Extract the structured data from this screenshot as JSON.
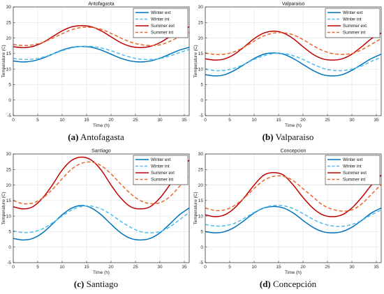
{
  "figure": {
    "panels": [
      {
        "letter": "(a)",
        "caption": "Antofagasta"
      },
      {
        "letter": "(b)",
        "caption": "Valparaiso"
      },
      {
        "letter": "(c)",
        "caption": "Santiago"
      },
      {
        "letter": "(d)",
        "caption": "Concepción"
      }
    ]
  },
  "chart_data": [
    {
      "type": "line",
      "title": "Antofagasta",
      "xlabel": "Time (h)",
      "ylabel": "Temperature (C)",
      "xlim": [
        0,
        36
      ],
      "ylim": [
        -5,
        30
      ],
      "xticks": [
        0,
        5,
        10,
        15,
        20,
        25,
        30,
        35
      ],
      "yticks": [
        -5,
        0,
        5,
        10,
        15,
        20,
        25,
        30
      ],
      "grid": true,
      "legend_position": "top-right",
      "series": [
        {
          "name": "Winter ext",
          "color": "#0072BD",
          "dash": "solid",
          "x": [
            0,
            2,
            4,
            6,
            8,
            10,
            12,
            14,
            16,
            18,
            20,
            22,
            24,
            26,
            28,
            30,
            32,
            34,
            36
          ],
          "y": [
            12.6,
            12.3,
            12.6,
            13.5,
            14.8,
            16.1,
            17.0,
            17.3,
            17.0,
            16.1,
            14.8,
            13.5,
            12.6,
            12.3,
            12.6,
            13.5,
            14.8,
            16.1,
            17.0
          ]
        },
        {
          "name": "Winter int",
          "color": "#4DBEEE",
          "dash": "dashed",
          "x": [
            0,
            2,
            4,
            6,
            8,
            10,
            12,
            14,
            16,
            18,
            20,
            22,
            24,
            26,
            28,
            30,
            32,
            34,
            36
          ],
          "y": [
            13.4,
            13.1,
            13.2,
            13.8,
            14.8,
            15.9,
            16.8,
            17.3,
            17.3,
            16.8,
            15.9,
            14.8,
            13.8,
            13.2,
            13.1,
            13.4,
            14.2,
            15.3,
            16.3
          ]
        },
        {
          "name": "Summer ext",
          "color": "#C00000",
          "dash": "solid",
          "x": [
            0,
            2,
            4,
            6,
            8,
            10,
            12,
            14,
            16,
            18,
            20,
            22,
            24,
            26,
            28,
            30,
            32,
            34,
            36
          ],
          "y": [
            17.2,
            16.9,
            17.3,
            18.5,
            20.4,
            22.3,
            23.6,
            24.0,
            23.6,
            22.3,
            20.4,
            18.5,
            17.3,
            16.9,
            17.3,
            18.5,
            20.4,
            22.3,
            23.6
          ]
        },
        {
          "name": "Summer int",
          "color": "#E8682A",
          "dash": "dashed",
          "x": [
            0,
            2,
            4,
            6,
            8,
            10,
            12,
            14,
            16,
            18,
            20,
            22,
            24,
            26,
            28,
            30,
            32,
            34,
            36
          ],
          "y": [
            17.9,
            17.6,
            17.8,
            18.6,
            19.9,
            21.4,
            22.7,
            23.4,
            23.4,
            22.8,
            21.5,
            20.0,
            18.7,
            17.9,
            17.6,
            17.8,
            18.9,
            20.4,
            21.8
          ]
        }
      ]
    },
    {
      "type": "line",
      "title": "Valparaiso",
      "xlabel": "Time (h)",
      "ylabel": "Temperature (C)",
      "xlim": [
        0,
        36
      ],
      "ylim": [
        -5,
        30
      ],
      "xticks": [
        0,
        5,
        10,
        15,
        20,
        25,
        30,
        35
      ],
      "yticks": [
        -5,
        0,
        5,
        10,
        15,
        20,
        25,
        30
      ],
      "grid": true,
      "legend_position": "top-right",
      "series": [
        {
          "name": "Winter ext",
          "color": "#0072BD",
          "dash": "solid",
          "x": [
            0,
            2,
            4,
            6,
            8,
            10,
            12,
            14,
            16,
            18,
            20,
            22,
            24,
            26,
            28,
            30,
            32,
            34,
            36
          ],
          "y": [
            8.2,
            7.8,
            8.2,
            9.6,
            11.5,
            13.4,
            14.8,
            15.2,
            14.8,
            13.4,
            11.5,
            9.6,
            8.2,
            7.8,
            8.2,
            9.6,
            11.5,
            13.4,
            14.8
          ]
        },
        {
          "name": "Winter int",
          "color": "#4DBEEE",
          "dash": "dashed",
          "x": [
            0,
            2,
            4,
            6,
            8,
            10,
            12,
            14,
            16,
            18,
            20,
            22,
            24,
            26,
            28,
            30,
            32,
            34,
            36
          ],
          "y": [
            10.0,
            9.5,
            9.6,
            10.3,
            11.6,
            13.1,
            14.3,
            15.0,
            15.0,
            14.3,
            13.1,
            11.6,
            10.3,
            9.6,
            9.5,
            10.0,
            11.0,
            12.5,
            13.8
          ]
        },
        {
          "name": "Summer ext",
          "color": "#C00000",
          "dash": "solid",
          "x": [
            0,
            2,
            4,
            6,
            8,
            10,
            12,
            14,
            16,
            18,
            20,
            22,
            24,
            26,
            28,
            30,
            32,
            34,
            36
          ],
          "y": [
            13.3,
            12.9,
            13.3,
            14.8,
            17.2,
            19.8,
            21.6,
            22.2,
            21.6,
            19.8,
            17.2,
            14.8,
            13.3,
            12.9,
            13.3,
            14.8,
            17.2,
            19.8,
            21.6
          ]
        },
        {
          "name": "Summer int",
          "color": "#E8682A",
          "dash": "dashed",
          "x": [
            0,
            2,
            4,
            6,
            8,
            10,
            12,
            14,
            16,
            18,
            20,
            22,
            24,
            26,
            28,
            30,
            32,
            34,
            36
          ],
          "y": [
            15.2,
            14.7,
            14.8,
            15.6,
            17.1,
            19.0,
            20.7,
            21.6,
            21.7,
            21.0,
            19.5,
            17.6,
            16.0,
            15.0,
            14.7,
            15.0,
            16.2,
            18.0,
            19.8
          ]
        }
      ]
    },
    {
      "type": "line",
      "title": "Santiago",
      "xlabel": "Time (h)",
      "ylabel": "Temperature (C)",
      "xlim": [
        0,
        36
      ],
      "ylim": [
        -5,
        30
      ],
      "xticks": [
        0,
        5,
        10,
        15,
        20,
        25,
        30,
        35
      ],
      "yticks": [
        -5,
        0,
        5,
        10,
        15,
        20,
        25,
        30
      ],
      "grid": true,
      "legend_position": "top-right",
      "series": [
        {
          "name": "Winter ext",
          "color": "#0072BD",
          "dash": "solid",
          "x": [
            0,
            2,
            4,
            6,
            8,
            10,
            12,
            14,
            16,
            18,
            20,
            22,
            24,
            26,
            28,
            30,
            32,
            34,
            36
          ],
          "y": [
            2.8,
            2.3,
            2.8,
            4.6,
            7.4,
            10.4,
            12.6,
            13.4,
            12.6,
            10.4,
            7.4,
            4.6,
            2.8,
            2.3,
            2.8,
            4.6,
            7.4,
            10.4,
            12.6
          ]
        },
        {
          "name": "Winter int",
          "color": "#4DBEEE",
          "dash": "dashed",
          "x": [
            0,
            2,
            4,
            6,
            8,
            10,
            12,
            14,
            16,
            18,
            20,
            22,
            24,
            26,
            28,
            30,
            32,
            34,
            36
          ],
          "y": [
            5.2,
            4.7,
            4.9,
            5.9,
            7.8,
            10.0,
            12.0,
            13.1,
            13.2,
            12.3,
            10.5,
            8.3,
            6.4,
            5.0,
            4.6,
            5.0,
            6.5,
            8.8,
            11.2
          ]
        },
        {
          "name": "Summer ext",
          "color": "#C00000",
          "dash": "solid",
          "x": [
            0,
            2,
            4,
            6,
            8,
            10,
            12,
            14,
            16,
            18,
            20,
            22,
            24,
            26,
            28,
            30,
            32,
            34,
            36
          ],
          "y": [
            13.0,
            12.3,
            13.0,
            15.8,
            20.0,
            24.8,
            28.0,
            29.0,
            28.0,
            24.8,
            20.0,
            15.8,
            13.0,
            12.3,
            13.0,
            15.8,
            20.0,
            24.8,
            28.0
          ]
        },
        {
          "name": "Summer int",
          "color": "#E8682A",
          "dash": "dashed",
          "x": [
            0,
            2,
            4,
            6,
            8,
            10,
            12,
            14,
            16,
            18,
            20,
            22,
            24,
            26,
            28,
            30,
            32,
            34,
            36
          ],
          "y": [
            15.0,
            14.0,
            14.2,
            15.8,
            18.6,
            22.0,
            25.2,
            27.0,
            27.4,
            26.2,
            23.6,
            20.3,
            17.2,
            15.0,
            14.0,
            14.3,
            16.2,
            19.5,
            23.0
          ]
        }
      ]
    },
    {
      "type": "line",
      "title": "Concepcion",
      "xlabel": "Time (h)",
      "ylabel": "Temperature (C)",
      "xlim": [
        0,
        36
      ],
      "ylim": [
        -5,
        30
      ],
      "xticks": [
        0,
        5,
        10,
        15,
        20,
        25,
        30,
        35
      ],
      "yticks": [
        -5,
        0,
        5,
        10,
        15,
        20,
        25,
        30
      ],
      "grid": true,
      "legend_position": "top-right",
      "series": [
        {
          "name": "Winter ext",
          "color": "#0072BD",
          "dash": "solid",
          "x": [
            0,
            2,
            4,
            6,
            8,
            10,
            12,
            14,
            16,
            18,
            20,
            22,
            24,
            26,
            28,
            30,
            32,
            34,
            36
          ],
          "y": [
            5.0,
            4.6,
            5.0,
            6.4,
            8.6,
            11.0,
            12.6,
            13.1,
            12.6,
            11.0,
            8.6,
            6.4,
            5.0,
            4.6,
            5.0,
            6.4,
            8.6,
            11.0,
            12.6
          ]
        },
        {
          "name": "Winter int",
          "color": "#4DBEEE",
          "dash": "dashed",
          "x": [
            0,
            2,
            4,
            6,
            8,
            10,
            12,
            14,
            16,
            18,
            20,
            22,
            24,
            26,
            28,
            30,
            32,
            34,
            36
          ],
          "y": [
            7.3,
            6.8,
            6.9,
            7.7,
            9.3,
            11.2,
            12.7,
            13.4,
            13.3,
            12.4,
            10.8,
            9.0,
            7.6,
            6.8,
            6.7,
            7.3,
            8.6,
            10.4,
            12.0
          ]
        },
        {
          "name": "Summer ext",
          "color": "#C00000",
          "dash": "solid",
          "x": [
            0,
            2,
            4,
            6,
            8,
            10,
            12,
            14,
            16,
            18,
            20,
            22,
            24,
            26,
            28,
            30,
            32,
            34,
            36
          ],
          "y": [
            10.4,
            9.8,
            10.4,
            12.6,
            16.0,
            20.0,
            23.2,
            24.0,
            23.2,
            20.0,
            16.0,
            12.6,
            10.4,
            9.8,
            10.4,
            12.6,
            16.0,
            20.0,
            23.2
          ]
        },
        {
          "name": "Summer int",
          "color": "#E8682A",
          "dash": "dashed",
          "x": [
            0,
            2,
            4,
            6,
            8,
            10,
            12,
            14,
            16,
            18,
            20,
            22,
            24,
            26,
            28,
            30,
            32,
            34,
            36
          ],
          "y": [
            12.6,
            11.8,
            12.0,
            13.4,
            15.9,
            18.9,
            21.5,
            22.8,
            22.8,
            21.4,
            18.8,
            16.2,
            13.6,
            12.2,
            11.6,
            12.0,
            13.9,
            17.0,
            20.2
          ]
        }
      ]
    }
  ]
}
